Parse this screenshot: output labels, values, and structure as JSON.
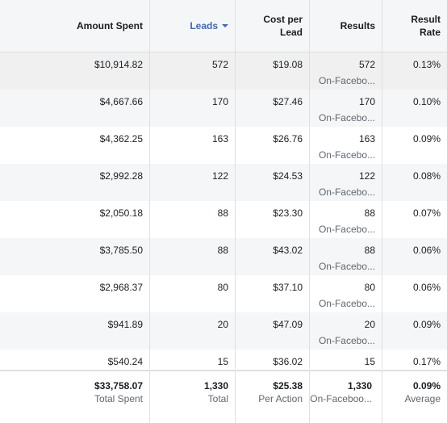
{
  "columns": {
    "amount_spent": "Amount Spent",
    "leads": "Leads",
    "cost_per_lead": [
      "Cost per",
      "Lead"
    ],
    "results": "Results",
    "result_rate": [
      "Result",
      "Rate"
    ]
  },
  "rows": [
    {
      "amount": "$10,914.82",
      "leads": "572",
      "cost": "$19.08",
      "results": "572",
      "results_sub": "On-Facebo...",
      "rate": "0.13%"
    },
    {
      "amount": "$4,667.66",
      "leads": "170",
      "cost": "$27.46",
      "results": "170",
      "results_sub": "On-Facebo...",
      "rate": "0.10%"
    },
    {
      "amount": "$4,362.25",
      "leads": "163",
      "cost": "$26.76",
      "results": "163",
      "results_sub": "On-Facebo...",
      "rate": "0.09%"
    },
    {
      "amount": "$2,992.28",
      "leads": "122",
      "cost": "$24.53",
      "results": "122",
      "results_sub": "On-Facebo...",
      "rate": "0.08%"
    },
    {
      "amount": "$2,050.18",
      "leads": "88",
      "cost": "$23.30",
      "results": "88",
      "results_sub": "On-Facebo...",
      "rate": "0.07%"
    },
    {
      "amount": "$3,785.50",
      "leads": "88",
      "cost": "$43.02",
      "results": "88",
      "results_sub": "On-Facebo...",
      "rate": "0.06%"
    },
    {
      "amount": "$2,968.37",
      "leads": "80",
      "cost": "$37.10",
      "results": "80",
      "results_sub": "On-Facebo...",
      "rate": "0.06%"
    },
    {
      "amount": "$941.89",
      "leads": "20",
      "cost": "$47.09",
      "results": "20",
      "results_sub": "On-Facebo...",
      "rate": "0.09%"
    },
    {
      "amount": "$540.24",
      "leads": "15",
      "cost": "$36.02",
      "results": "15",
      "results_sub": "",
      "rate": "0.17%"
    }
  ],
  "totals": {
    "amount": "$33,758.07",
    "amount_label": "Total Spent",
    "leads": "1,330",
    "leads_label": "Total",
    "cost": "$25.38",
    "cost_label": "Per Action",
    "results": "1,330",
    "results_label": "On-Faceboo...",
    "rate": "0.09%",
    "rate_label": "Average"
  },
  "colors": {
    "sort_accent": "#4267b2",
    "border": "#dddfe2",
    "header_bg": "#f5f6f7"
  },
  "icons": {
    "sort": "caret-down-icon"
  }
}
